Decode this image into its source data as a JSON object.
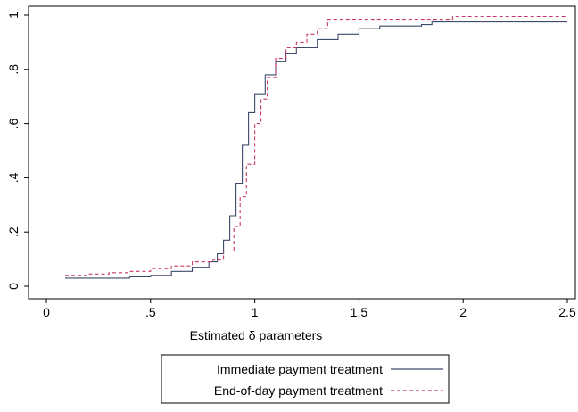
{
  "chart_data": {
    "type": "line",
    "xlabel": "Estimated δ parameters",
    "ylabel": "",
    "xlim": [
      0,
      2.5
    ],
    "ylim": [
      0,
      1
    ],
    "xticks": [
      {
        "value": 0,
        "label": "0"
      },
      {
        "value": 0.5,
        "label": ".5"
      },
      {
        "value": 1,
        "label": "1"
      },
      {
        "value": 1.5,
        "label": "1.5"
      },
      {
        "value": 2,
        "label": "2"
      },
      {
        "value": 2.5,
        "label": "2.5"
      }
    ],
    "yticks": [
      {
        "value": 0,
        "label": "0"
      },
      {
        "value": 0.2,
        "label": ".2"
      },
      {
        "value": 0.4,
        "label": ".4"
      },
      {
        "value": 0.6,
        "label": ".6"
      },
      {
        "value": 0.8,
        "label": ".8"
      },
      {
        "value": 1,
        "label": "1"
      }
    ],
    "grid": false,
    "legend_position": "bottom",
    "series": [
      {
        "name": "Immediate payment treatment",
        "color": "#3d4a6b",
        "dash": "solid",
        "points": [
          [
            0.09,
            0.03
          ],
          [
            0.3,
            0.03
          ],
          [
            0.4,
            0.035
          ],
          [
            0.5,
            0.04
          ],
          [
            0.6,
            0.055
          ],
          [
            0.7,
            0.07
          ],
          [
            0.78,
            0.09
          ],
          [
            0.82,
            0.12
          ],
          [
            0.85,
            0.17
          ],
          [
            0.88,
            0.26
          ],
          [
            0.91,
            0.38
          ],
          [
            0.94,
            0.52
          ],
          [
            0.97,
            0.64
          ],
          [
            1.0,
            0.71
          ],
          [
            1.05,
            0.78
          ],
          [
            1.1,
            0.83
          ],
          [
            1.15,
            0.86
          ],
          [
            1.2,
            0.88
          ],
          [
            1.3,
            0.91
          ],
          [
            1.4,
            0.93
          ],
          [
            1.5,
            0.95
          ],
          [
            1.6,
            0.96
          ],
          [
            1.8,
            0.965
          ],
          [
            1.85,
            0.975
          ],
          [
            2.5,
            0.975
          ]
        ]
      },
      {
        "name": "End-of-day payment treatment",
        "color": "#c8386b",
        "dash": "dashed",
        "points": [
          [
            0.09,
            0.04
          ],
          [
            0.2,
            0.045
          ],
          [
            0.3,
            0.05
          ],
          [
            0.4,
            0.055
          ],
          [
            0.5,
            0.065
          ],
          [
            0.6,
            0.075
          ],
          [
            0.7,
            0.09
          ],
          [
            0.8,
            0.1
          ],
          [
            0.85,
            0.13
          ],
          [
            0.9,
            0.22
          ],
          [
            0.93,
            0.33
          ],
          [
            0.96,
            0.45
          ],
          [
            1.0,
            0.6
          ],
          [
            1.03,
            0.69
          ],
          [
            1.06,
            0.77
          ],
          [
            1.1,
            0.84
          ],
          [
            1.15,
            0.88
          ],
          [
            1.2,
            0.9
          ],
          [
            1.25,
            0.93
          ],
          [
            1.3,
            0.95
          ],
          [
            1.35,
            0.985
          ],
          [
            1.9,
            0.985
          ],
          [
            1.95,
            0.995
          ],
          [
            2.5,
            0.995
          ]
        ]
      }
    ]
  }
}
